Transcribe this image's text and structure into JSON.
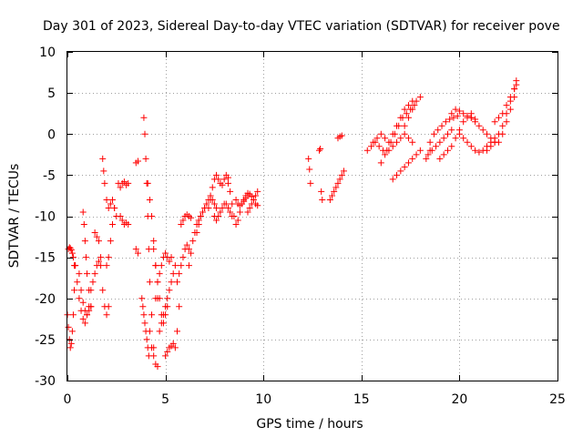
{
  "chart_data": {
    "type": "scatter",
    "title": "Day 301 of 2023, Sidereal Day-to-day VTEC variation (SDTVAR) for receiver pove",
    "xlabel": "GPS time / hours",
    "ylabel": "SDTVAR / TECUs",
    "xlim": [
      0,
      25
    ],
    "ylim": [
      -30,
      10
    ],
    "xticks": [
      0,
      5,
      10,
      15,
      20,
      25
    ],
    "yticks": [
      -30,
      -25,
      -20,
      -15,
      -10,
      -5,
      0,
      5,
      10
    ],
    "marker": "plus",
    "color": "#ff0000",
    "grid": true,
    "series": [
      {
        "name": "s1",
        "x": [
          0.0,
          0.05,
          0.1,
          0.15,
          0.2,
          0.25,
          0.3,
          0.35,
          0.4
        ],
        "y": [
          -22,
          -23.5,
          -25,
          -26,
          -25.5,
          -24,
          -22,
          -19,
          -16
        ]
      },
      {
        "name": "s2",
        "x": [
          0.05,
          0.1,
          0.15,
          0.2,
          0.25,
          0.3,
          0.35
        ],
        "y": [
          -14,
          -13.8,
          -13.9,
          -14.1,
          -14.5,
          -15,
          -16
        ]
      },
      {
        "name": "s3",
        "x": [
          0.4,
          0.5,
          0.6,
          0.7,
          0.8,
          0.9,
          1.0,
          1.1
        ],
        "y": [
          -16,
          -18,
          -20,
          -21.5,
          -22.5,
          -23,
          -22,
          -21
        ]
      },
      {
        "name": "s4",
        "x": [
          0.6,
          0.7,
          0.8,
          0.9,
          1.0,
          1.1,
          1.2
        ],
        "y": [
          -17,
          -19,
          -20.5,
          -21.5,
          -22,
          -21.5,
          -21
        ]
      },
      {
        "name": "s5",
        "x": [
          0.8,
          0.85,
          0.9,
          0.95,
          1.0,
          1.1,
          1.2
        ],
        "y": [
          -9.5,
          -11,
          -13,
          -15,
          -17,
          -19,
          -21
        ]
      },
      {
        "name": "s6",
        "x": [
          1.2,
          1.3,
          1.4,
          1.5,
          1.6,
          1.7
        ],
        "y": [
          -19,
          -18,
          -17,
          -16,
          -15.5,
          -15
        ]
      },
      {
        "name": "s7",
        "x": [
          1.4,
          1.5,
          1.6,
          1.7,
          1.8,
          1.9,
          2.0,
          2.1
        ],
        "y": [
          -12,
          -12.5,
          -13,
          -16,
          -19,
          -21,
          -22,
          -21
        ]
      },
      {
        "name": "s8",
        "x": [
          1.8,
          1.85,
          1.9,
          2.0,
          2.1,
          2.2,
          2.3,
          2.4,
          2.5
        ],
        "y": [
          -3,
          -4.5,
          -6,
          -8,
          -9,
          -8.5,
          -8,
          -9,
          -10
        ]
      },
      {
        "name": "s9",
        "x": [
          2.0,
          2.1,
          2.2,
          2.3,
          2.4
        ],
        "y": [
          -16,
          -15,
          -13,
          -11,
          -9
        ]
      },
      {
        "name": "s10",
        "x": [
          2.6,
          2.7,
          2.8,
          2.9,
          3.0,
          3.1
        ],
        "y": [
          -6,
          -6.5,
          -6,
          -5.8,
          -6.2,
          -6
        ]
      },
      {
        "name": "s11",
        "x": [
          2.7,
          2.8,
          2.9,
          3.0,
          3.1
        ],
        "y": [
          -10,
          -10.5,
          -11,
          -10.8,
          -11
        ]
      },
      {
        "name": "s12",
        "x": [
          3.5,
          3.6
        ],
        "y": [
          -3.5,
          -3.3
        ]
      },
      {
        "name": "s13",
        "x": [
          3.5,
          3.6
        ],
        "y": [
          -14,
          -14.5
        ]
      },
      {
        "name": "s14",
        "x": [
          3.8,
          3.85,
          3.9,
          3.95,
          4.0,
          4.05,
          4.1,
          4.15
        ],
        "y": [
          -20,
          -21,
          -22,
          -23,
          -24,
          -25,
          -26,
          -27
        ]
      },
      {
        "name": "s15",
        "x": [
          3.9,
          3.95,
          4.0,
          4.05,
          4.1,
          4.15,
          4.2,
          4.3,
          4.4
        ],
        "y": [
          2,
          0,
          -3,
          -6,
          -10,
          -14,
          -18,
          -22,
          -26
        ]
      },
      {
        "name": "s16",
        "x": [
          4.1,
          4.2,
          4.3,
          4.4,
          4.5,
          4.6,
          4.7
        ],
        "y": [
          -6,
          -8,
          -10,
          -13,
          -16,
          -20,
          -24
        ]
      },
      {
        "name": "s17",
        "x": [
          4.2,
          4.3,
          4.4,
          4.5,
          4.6
        ],
        "y": [
          -24,
          -26,
          -27,
          -28,
          -28.3
        ]
      },
      {
        "name": "s18",
        "x": [
          4.4,
          4.5,
          4.6,
          4.7,
          4.8,
          4.9,
          5.0,
          5.1
        ],
        "y": [
          -14,
          -16,
          -18,
          -20,
          -22,
          -23,
          -22,
          -21
        ]
      },
      {
        "name": "s19",
        "x": [
          4.5,
          4.6,
          4.7,
          4.8,
          4.9,
          5.0,
          5.1,
          5.2,
          5.3
        ],
        "y": [
          -20,
          -18,
          -17,
          -16,
          -15,
          -14.5,
          -15,
          -15.5,
          -15
        ]
      },
      {
        "name": "s20",
        "x": [
          4.8,
          4.9,
          5.0,
          5.1,
          5.2,
          5.3,
          5.4,
          5.5
        ],
        "y": [
          -23,
          -22,
          -21,
          -20,
          -19,
          -18,
          -17,
          -16
        ]
      },
      {
        "name": "s21",
        "x": [
          5.0,
          5.1,
          5.2,
          5.3,
          5.4,
          5.5,
          5.6,
          5.7
        ],
        "y": [
          -27,
          -26.5,
          -26,
          -25.8,
          -25.5,
          -26,
          -24,
          -21
        ]
      },
      {
        "name": "s22",
        "x": [
          5.6,
          5.7,
          5.8,
          5.9,
          6.0,
          6.1,
          6.2
        ],
        "y": [
          -18,
          -17,
          -16,
          -15,
          -14,
          -13.5,
          -14
        ]
      },
      {
        "name": "s23",
        "x": [
          5.8,
          5.9,
          6.0,
          6.1,
          6.2,
          6.3
        ],
        "y": [
          -11,
          -10.5,
          -10,
          -9.8,
          -10,
          -10.2
        ]
      },
      {
        "name": "s24",
        "x": [
          6.2,
          6.3,
          6.4,
          6.5,
          6.6,
          6.7,
          6.8,
          6.9,
          7.0
        ],
        "y": [
          -16,
          -14.5,
          -13,
          -12,
          -11,
          -10.5,
          -10,
          -9.5,
          -9
        ]
      },
      {
        "name": "s25",
        "x": [
          6.6,
          6.7,
          6.8,
          6.9,
          7.0,
          7.1,
          7.2,
          7.3,
          7.4,
          7.5,
          7.6
        ],
        "y": [
          -12,
          -11,
          -10,
          -9.5,
          -9,
          -8.5,
          -8,
          -7.5,
          -8,
          -8.5,
          -9
        ]
      },
      {
        "name": "s26",
        "x": [
          7.2,
          7.3,
          7.4,
          7.5,
          7.6,
          7.7,
          7.8,
          7.9,
          8.0,
          8.1,
          8.2
        ],
        "y": [
          -9,
          -8,
          -6.5,
          -5.5,
          -5,
          -5.5,
          -6,
          -6.2,
          -5.5,
          -5,
          -5.3
        ]
      },
      {
        "name": "s27",
        "x": [
          7.5,
          7.6,
          7.7,
          7.8,
          7.9,
          8.0,
          8.1,
          8.2,
          8.3,
          8.4
        ],
        "y": [
          -10,
          -10.5,
          -10,
          -9.5,
          -9,
          -8.5,
          -8.5,
          -9,
          -9.5,
          -10
        ]
      },
      {
        "name": "s28",
        "x": [
          8.2,
          8.3,
          8.4,
          8.5,
          8.6,
          8.7,
          8.8,
          8.9,
          9.0,
          9.1,
          9.2
        ],
        "y": [
          -6,
          -7,
          -8.5,
          -10,
          -11,
          -10.5,
          -9.5,
          -8.5,
          -8,
          -7.5,
          -7.2
        ]
      },
      {
        "name": "s29",
        "x": [
          8.6,
          8.7,
          8.8,
          8.9,
          9.0,
          9.1,
          9.2,
          9.3,
          9.4,
          9.5,
          9.6,
          9.7
        ],
        "y": [
          -8,
          -8.5,
          -8.7,
          -8.5,
          -8.2,
          -7.8,
          -7.5,
          -7.3,
          -7.6,
          -8,
          -8.5,
          -8.7
        ]
      },
      {
        "name": "s30",
        "x": [
          9.2,
          9.3,
          9.4,
          9.5,
          9.6,
          9.7
        ],
        "y": [
          -9.5,
          -9,
          -8.5,
          -8,
          -7.5,
          -7
        ]
      },
      {
        "name": "s31",
        "x": [
          12.3,
          12.35,
          12.4
        ],
        "y": [
          -3,
          -4.3,
          -6
        ]
      },
      {
        "name": "s32",
        "x": [
          12.85,
          12.9,
          12.95,
          13.0
        ],
        "y": [
          -2,
          -1.8,
          -7,
          -8
        ]
      },
      {
        "name": "s33",
        "x": [
          13.4,
          13.5,
          13.6,
          13.7,
          13.8,
          13.9,
          14.0,
          14.1
        ],
        "y": [
          -8,
          -7.5,
          -7,
          -6.5,
          -6,
          -5.5,
          -5,
          -4.5
        ]
      },
      {
        "name": "s34",
        "x": [
          13.8,
          13.9,
          14.0
        ],
        "y": [
          -0.5,
          -0.3,
          -0.2
        ]
      },
      {
        "name": "s35",
        "x": [
          15.3,
          15.5,
          15.7,
          15.9,
          16.1,
          16.3,
          16.5,
          16.7,
          16.9,
          17.1,
          17.3,
          17.5,
          17.7
        ],
        "y": [
          -2,
          -1.5,
          -1,
          -1.5,
          -2,
          -2,
          -1,
          0,
          1,
          2,
          2.5,
          3,
          3.5
        ]
      },
      {
        "name": "s36",
        "x": [
          15.6,
          15.8,
          16.0,
          16.2,
          16.4,
          16.6,
          16.8,
          17.0,
          17.2,
          17.4,
          17.6
        ],
        "y": [
          -1,
          -0.5,
          0,
          -0.5,
          -1,
          0,
          1,
          2,
          3,
          3.5,
          4
        ]
      },
      {
        "name": "s37",
        "x": [
          16.0,
          16.2,
          16.4,
          16.6,
          16.8,
          17.0,
          17.2,
          17.4,
          17.6
        ],
        "y": [
          -3.5,
          -2.5,
          -2,
          -1.5,
          -1,
          -0.5,
          0,
          -0.5,
          -1
        ]
      },
      {
        "name": "s38",
        "x": [
          16.6,
          16.8,
          17.0,
          17.2,
          17.4,
          17.6,
          17.8,
          18.0
        ],
        "y": [
          -5.5,
          -5,
          -4.5,
          -4,
          -3.5,
          -3,
          -2.5,
          -2
        ]
      },
      {
        "name": "s39",
        "x": [
          17.2,
          17.4,
          17.6,
          17.8,
          18.0
        ],
        "y": [
          1,
          2,
          3,
          4,
          4.5
        ]
      },
      {
        "name": "s40",
        "x": [
          18.3,
          18.4,
          18.5
        ],
        "y": [
          -3,
          -2.5,
          -2
        ]
      },
      {
        "name": "s41",
        "x": [
          18.5,
          18.7,
          18.9,
          19.1,
          19.3,
          19.5,
          19.7,
          19.9
        ],
        "y": [
          -1,
          0,
          0.5,
          1,
          1.5,
          1.8,
          2,
          2.2
        ]
      },
      {
        "name": "s42",
        "x": [
          18.6,
          18.8,
          19.0,
          19.2,
          19.4,
          19.6
        ],
        "y": [
          -2,
          -1.5,
          -1,
          -0.5,
          0,
          0.5
        ]
      },
      {
        "name": "s43",
        "x": [
          19.0,
          19.2,
          19.4,
          19.6,
          19.8,
          20.0,
          20.2,
          20.4,
          20.6
        ],
        "y": [
          -3,
          -2.5,
          -2,
          -1.5,
          -0.5,
          0.5,
          1.5,
          2,
          2.5
        ]
      },
      {
        "name": "s44",
        "x": [
          19.6,
          19.8,
          20.0,
          20.2,
          20.4,
          20.6,
          20.8
        ],
        "y": [
          2.5,
          3,
          2.8,
          2.5,
          2.2,
          2,
          1.8
        ]
      },
      {
        "name": "s45",
        "x": [
          20.0,
          20.2,
          20.4,
          20.6,
          20.8,
          21.0,
          21.2,
          21.4,
          21.6,
          21.8
        ],
        "y": [
          0,
          -0.5,
          -1,
          -1.5,
          -2,
          -2.2,
          -2,
          -1.5,
          -1,
          -0.5
        ]
      },
      {
        "name": "s46",
        "x": [
          20.6,
          20.8,
          21.0,
          21.2,
          21.4,
          21.6,
          21.8
        ],
        "y": [
          2,
          1.5,
          1,
          0.5,
          0,
          -0.5,
          -1
        ]
      },
      {
        "name": "s47",
        "x": [
          21.4,
          21.6,
          21.8,
          22.0,
          22.2,
          22.4,
          22.6,
          22.8,
          22.9
        ],
        "y": [
          -2,
          -1.5,
          -1,
          0,
          1,
          2.5,
          4,
          5.5,
          6.5
        ]
      },
      {
        "name": "s48",
        "x": [
          21.8,
          22.0,
          22.2,
          22.4,
          22.6,
          22.8
        ],
        "y": [
          1.5,
          2,
          2.5,
          3.5,
          4.5,
          5.5
        ]
      },
      {
        "name": "s49",
        "x": [
          22.0,
          22.2,
          22.4,
          22.6,
          22.8,
          22.9
        ],
        "y": [
          -1,
          0,
          1.5,
          3,
          4.5,
          6
        ]
      }
    ]
  }
}
